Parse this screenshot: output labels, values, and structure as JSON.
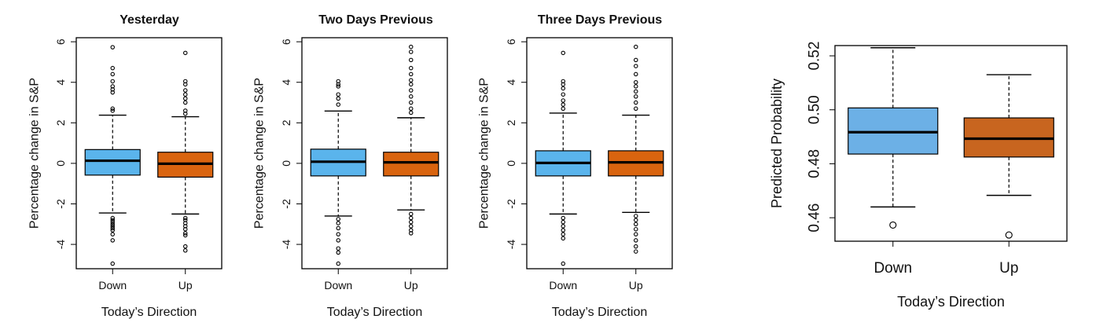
{
  "chart_data": [
    {
      "type": "boxplot",
      "title": "Yesterday",
      "xlabel": "Today’s Direction",
      "ylabel": "Percentage change in S&P",
      "categories": [
        "Down",
        "Up"
      ],
      "ylim": [
        -5.2,
        6.2
      ],
      "yticks": [
        "-4",
        "-2",
        "0",
        "2",
        "4",
        "6"
      ],
      "boxes": [
        {
          "name": "Down",
          "color": "#5ab4ec",
          "min": -2.45,
          "q1": -0.58,
          "median": 0.13,
          "q3": 0.68,
          "max": 2.38,
          "outliers": [
            5.73,
            4.7,
            4.4,
            4.05,
            3.8,
            3.65,
            3.5,
            2.7,
            2.6,
            -2.7,
            -2.8,
            -2.9,
            -3.0,
            -3.1,
            -3.2,
            -3.3,
            -3.5,
            -3.8,
            -4.95
          ]
        },
        {
          "name": "Up",
          "color": "#d9640f",
          "min": -2.5,
          "q1": -0.68,
          "median": -0.02,
          "q3": 0.55,
          "max": 2.3,
          "outliers": [
            5.45,
            4.05,
            3.9,
            3.6,
            3.4,
            3.2,
            3.0,
            2.6,
            2.45,
            -2.7,
            -2.8,
            -2.95,
            -3.1,
            -3.25,
            -3.45,
            -3.55,
            -4.1,
            -4.3
          ]
        }
      ]
    },
    {
      "type": "boxplot",
      "title": "Two Days Previous",
      "xlabel": "Today’s Direction",
      "ylabel": "Percentage change in S&P",
      "categories": [
        "Down",
        "Up"
      ],
      "ylim": [
        -5.2,
        6.2
      ],
      "yticks": [
        "-4",
        "-2",
        "0",
        "2",
        "4",
        "6"
      ],
      "boxes": [
        {
          "name": "Down",
          "color": "#5ab4ec",
          "min": -2.6,
          "q1": -0.62,
          "median": 0.08,
          "q3": 0.7,
          "max": 2.58,
          "outliers": [
            4.05,
            3.9,
            3.8,
            3.4,
            3.2,
            2.9,
            -2.75,
            -2.95,
            -3.2,
            -3.5,
            -3.8,
            -4.2,
            -4.4,
            -4.95
          ]
        },
        {
          "name": "Up",
          "color": "#d9640f",
          "min": -2.3,
          "q1": -0.62,
          "median": 0.05,
          "q3": 0.55,
          "max": 2.25,
          "outliers": [
            5.75,
            5.5,
            5.1,
            4.7,
            4.4,
            4.1,
            3.9,
            3.6,
            3.3,
            3.0,
            2.7,
            2.5,
            -2.5,
            -2.7,
            -2.9,
            -3.1,
            -3.3,
            -3.45
          ]
        }
      ]
    },
    {
      "type": "boxplot",
      "title": "Three Days Previous",
      "xlabel": "Today’s Direction",
      "ylabel": "Percentage change in S&P",
      "categories": [
        "Down",
        "Up"
      ],
      "ylim": [
        -5.2,
        6.2
      ],
      "yticks": [
        "-4",
        "-2",
        "0",
        "2",
        "4",
        "6"
      ],
      "boxes": [
        {
          "name": "Down",
          "color": "#5ab4ec",
          "min": -2.5,
          "q1": -0.62,
          "median": 0.02,
          "q3": 0.62,
          "max": 2.48,
          "outliers": [
            5.45,
            4.05,
            3.9,
            3.7,
            3.4,
            3.1,
            2.9,
            2.7,
            -2.7,
            -2.9,
            -3.1,
            -3.3,
            -3.5,
            -3.7,
            -4.95
          ]
        },
        {
          "name": "Up",
          "color": "#d9640f",
          "min": -2.42,
          "q1": -0.62,
          "median": 0.05,
          "q3": 0.62,
          "max": 2.38,
          "outliers": [
            5.75,
            5.1,
            4.8,
            4.4,
            4.0,
            3.8,
            3.55,
            3.3,
            3.0,
            2.7,
            -2.6,
            -2.8,
            -3.0,
            -3.25,
            -3.5,
            -3.8,
            -4.1,
            -4.35
          ]
        }
      ]
    },
    {
      "type": "boxplot",
      "title": "",
      "xlabel": "Today’s Direction",
      "ylabel": "Predicted Probability",
      "categories": [
        "Down",
        "Up"
      ],
      "ylim": [
        0.4513,
        0.5238
      ],
      "yticks": [
        "0.46",
        "0.48",
        "0.50",
        "0.52"
      ],
      "boxes": [
        {
          "name": "Down",
          "color": "#6cb0e6",
          "min": 0.464,
          "q1": 0.4836,
          "median": 0.4917,
          "q3": 0.5007,
          "max": 0.523,
          "outliers": [
            0.4573
          ]
        },
        {
          "name": "Up",
          "color": "#c8651f",
          "min": 0.4683,
          "q1": 0.4825,
          "median": 0.4893,
          "q3": 0.497,
          "max": 0.513,
          "outliers": [
            0.4536
          ]
        }
      ]
    }
  ]
}
